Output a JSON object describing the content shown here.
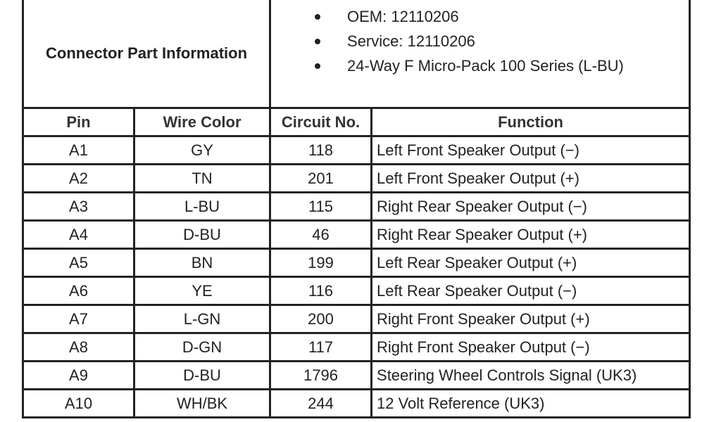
{
  "connector": {
    "label": "Connector Part Information",
    "items": [
      "OEM: 12110206",
      "Service: 12110206",
      "24-Way F Micro-Pack 100 Series (L-BU)"
    ]
  },
  "headers": [
    "Pin",
    "Wire Color",
    "Circuit No.",
    "Function"
  ],
  "rows": [
    [
      "A1",
      "GY",
      "118",
      "Left Front Speaker Output (−)"
    ],
    [
      "A2",
      "TN",
      "201",
      "Left Front Speaker Output (+)"
    ],
    [
      "A3",
      "L-BU",
      "115",
      "Right Rear Speaker Output (−)"
    ],
    [
      "A4",
      "D-BU",
      "46",
      "Right Rear Speaker Output (+)"
    ],
    [
      "A5",
      "BN",
      "199",
      "Left Rear Speaker Output (+)"
    ],
    [
      "A6",
      "YE",
      "116",
      "Left Rear Speaker Output (−)"
    ],
    [
      "A7",
      "L-GN",
      "200",
      "Right Front Speaker Output (+)"
    ],
    [
      "A8",
      "D-GN",
      "117",
      "Right Front Speaker Output (−)"
    ],
    [
      "A9",
      "D-BU",
      "1796",
      "Steering Wheel Controls Signal (UK3)"
    ],
    [
      "A10",
      "WH/BK",
      "244",
      "12 Volt Reference (UK3)"
    ]
  ]
}
